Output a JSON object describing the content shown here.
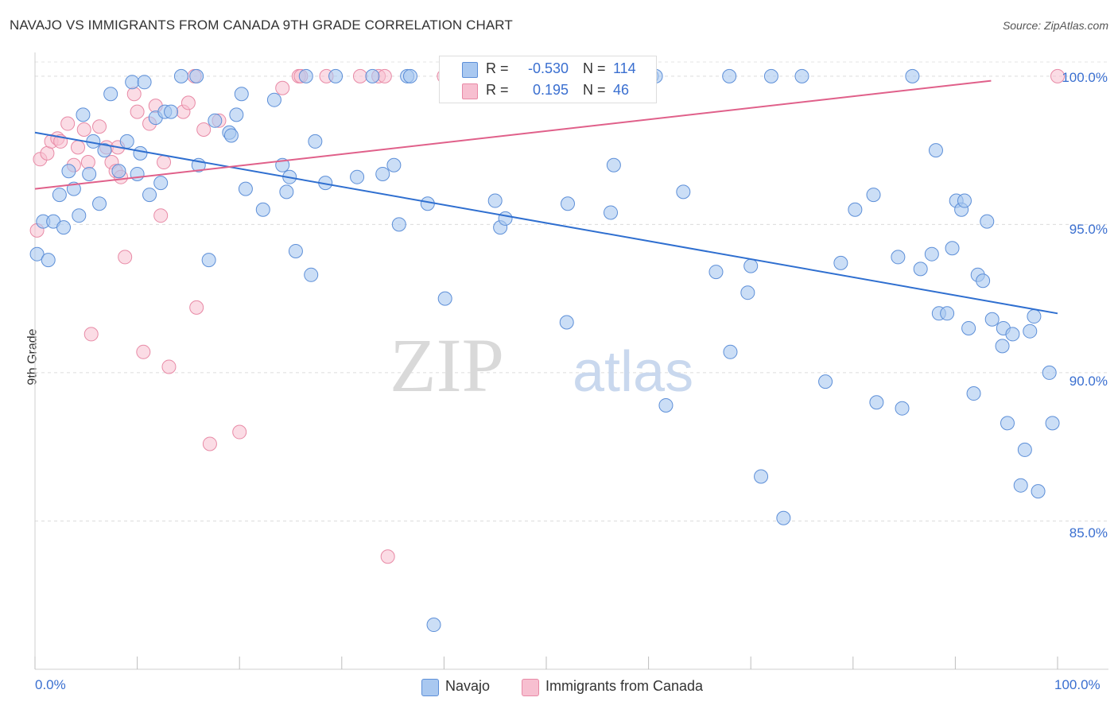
{
  "title": "NAVAJO VS IMMIGRANTS FROM CANADA 9TH GRADE CORRELATION CHART",
  "source": "Source: ZipAtlas.com",
  "watermark": {
    "zip": "ZIP",
    "atlas": "atlas"
  },
  "legend": {
    "rows": [
      {
        "r_label": "R =",
        "r_value": "-0.530",
        "n_label": "N =",
        "n_value": "114"
      },
      {
        "r_label": "R =",
        "r_value": "0.195",
        "n_label": "N =",
        "n_value": "46"
      }
    ]
  },
  "colors": {
    "navajo_fill": "#a9c8f0",
    "navajo_stroke": "#5d8fd8",
    "navajo_line": "#2f6fd0",
    "canada_fill": "#f7bfd0",
    "canada_stroke": "#e88aa6",
    "canada_line": "#e0608a",
    "tick_text": "#3a6fd0"
  },
  "chart_data": {
    "type": "scatter",
    "title": "NAVAJO VS IMMIGRANTS FROM CANADA 9TH GRADE CORRELATION CHART",
    "xlabel": "",
    "ylabel": "9th Grade",
    "xlim": [
      0,
      100
    ],
    "ylim": [
      80.0,
      100.8
    ],
    "x_tick_labels": [
      "0.0%",
      "100.0%"
    ],
    "y_ticks": [
      85.0,
      90.0,
      95.0,
      100.0
    ],
    "y_tick_labels": [
      "85.0%",
      "90.0%",
      "95.0%",
      "100.0%"
    ],
    "grid": true,
    "legend_position": "bottom",
    "series": [
      {
        "name": "Navajo",
        "trend": {
          "x": [
            0,
            100
          ],
          "y": [
            98.1,
            92.0
          ]
        },
        "points": [
          [
            0.2,
            94.0
          ],
          [
            0.8,
            95.1
          ],
          [
            1.3,
            93.8
          ],
          [
            1.8,
            95.1
          ],
          [
            2.4,
            96.0
          ],
          [
            2.8,
            94.9
          ],
          [
            3.3,
            96.8
          ],
          [
            3.8,
            96.2
          ],
          [
            4.3,
            95.3
          ],
          [
            4.7,
            98.7
          ],
          [
            5.3,
            96.7
          ],
          [
            5.7,
            97.8
          ],
          [
            6.3,
            95.7
          ],
          [
            6.8,
            97.5
          ],
          [
            7.4,
            99.4
          ],
          [
            8.2,
            96.8
          ],
          [
            9.0,
            97.8
          ],
          [
            9.5,
            99.8
          ],
          [
            10.0,
            96.7
          ],
          [
            10.3,
            97.4
          ],
          [
            10.7,
            99.8
          ],
          [
            11.2,
            96.0
          ],
          [
            11.8,
            98.6
          ],
          [
            12.3,
            96.4
          ],
          [
            12.7,
            98.8
          ],
          [
            13.3,
            98.8
          ],
          [
            14.3,
            100.0
          ],
          [
            15.8,
            100.0
          ],
          [
            16.0,
            97.0
          ],
          [
            17.0,
            93.8
          ],
          [
            17.6,
            98.5
          ],
          [
            19.0,
            98.1
          ],
          [
            19.2,
            98.0
          ],
          [
            19.7,
            98.7
          ],
          [
            20.2,
            99.4
          ],
          [
            20.6,
            96.2
          ],
          [
            22.3,
            95.5
          ],
          [
            23.4,
            99.2
          ],
          [
            24.2,
            97.0
          ],
          [
            24.6,
            96.1
          ],
          [
            24.9,
            96.6
          ],
          [
            25.5,
            94.1
          ],
          [
            26.5,
            100.0
          ],
          [
            27.0,
            93.3
          ],
          [
            27.4,
            97.8
          ],
          [
            28.4,
            96.4
          ],
          [
            29.4,
            100.0
          ],
          [
            31.5,
            96.6
          ],
          [
            33.0,
            100.0
          ],
          [
            34.0,
            96.7
          ],
          [
            35.1,
            97.0
          ],
          [
            35.6,
            95.0
          ],
          [
            36.4,
            100.0
          ],
          [
            36.7,
            100.0
          ],
          [
            38.4,
            95.7
          ],
          [
            40.1,
            92.5
          ],
          [
            40.9,
            100.0
          ],
          [
            42.2,
            100.0
          ],
          [
            45.0,
            95.8
          ],
          [
            45.5,
            94.9
          ],
          [
            46.0,
            95.2
          ],
          [
            52.1,
            95.7
          ],
          [
            52.0,
            91.7
          ],
          [
            52.5,
            100.0
          ],
          [
            56.3,
            95.4
          ],
          [
            56.6,
            97.0
          ],
          [
            60.3,
            100.0
          ],
          [
            60.7,
            100.0
          ],
          [
            61.7,
            88.9
          ],
          [
            63.4,
            96.1
          ],
          [
            66.6,
            93.4
          ],
          [
            67.9,
            100.0
          ],
          [
            68.0,
            90.7
          ],
          [
            69.7,
            92.7
          ],
          [
            70.0,
            93.6
          ],
          [
            71.0,
            86.5
          ],
          [
            72.0,
            100.0
          ],
          [
            73.2,
            85.1
          ],
          [
            75.0,
            100.0
          ],
          [
            77.3,
            89.7
          ],
          [
            78.8,
            93.7
          ],
          [
            80.2,
            95.5
          ],
          [
            82.0,
            96.0
          ],
          [
            82.3,
            89.0
          ],
          [
            84.4,
            93.9
          ],
          [
            84.8,
            88.8
          ],
          [
            85.8,
            100.0
          ],
          [
            86.6,
            93.5
          ],
          [
            87.7,
            94.0
          ],
          [
            88.1,
            97.5
          ],
          [
            88.4,
            92.0
          ],
          [
            89.2,
            92.0
          ],
          [
            89.7,
            94.2
          ],
          [
            90.1,
            95.8
          ],
          [
            90.6,
            95.5
          ],
          [
            90.9,
            95.8
          ],
          [
            91.3,
            91.5
          ],
          [
            91.8,
            89.3
          ],
          [
            92.2,
            93.3
          ],
          [
            92.7,
            93.1
          ],
          [
            93.1,
            95.1
          ],
          [
            93.6,
            91.8
          ],
          [
            94.6,
            90.9
          ],
          [
            94.7,
            91.5
          ],
          [
            95.1,
            88.3
          ],
          [
            95.6,
            91.3
          ],
          [
            96.4,
            86.2
          ],
          [
            96.8,
            87.4
          ],
          [
            97.3,
            91.4
          ],
          [
            97.7,
            91.9
          ],
          [
            98.1,
            86.0
          ],
          [
            99.2,
            90.0
          ],
          [
            99.5,
            88.3
          ],
          [
            39.0,
            81.5
          ]
        ]
      },
      {
        "name": "Immigrants from Canada",
        "trend": {
          "x": [
            0,
            100
          ],
          "y": [
            96.2,
            100.1
          ]
        },
        "points": [
          [
            0.2,
            94.8
          ],
          [
            0.5,
            97.2
          ],
          [
            1.2,
            97.4
          ],
          [
            1.6,
            97.8
          ],
          [
            2.2,
            97.9
          ],
          [
            2.5,
            97.8
          ],
          [
            3.2,
            98.4
          ],
          [
            3.8,
            97.0
          ],
          [
            4.2,
            97.6
          ],
          [
            4.8,
            98.2
          ],
          [
            5.2,
            97.1
          ],
          [
            6.3,
            98.3
          ],
          [
            7.0,
            97.6
          ],
          [
            7.5,
            97.1
          ],
          [
            7.9,
            96.8
          ],
          [
            8.1,
            97.6
          ],
          [
            8.4,
            96.6
          ],
          [
            8.8,
            93.9
          ],
          [
            9.7,
            99.4
          ],
          [
            10.0,
            98.8
          ],
          [
            10.6,
            90.7
          ],
          [
            11.2,
            98.4
          ],
          [
            11.8,
            99.0
          ],
          [
            12.3,
            95.3
          ],
          [
            12.6,
            97.1
          ],
          [
            13.1,
            90.2
          ],
          [
            14.5,
            98.8
          ],
          [
            15.0,
            99.1
          ],
          [
            15.6,
            100.0
          ],
          [
            15.8,
            92.2
          ],
          [
            16.5,
            98.2
          ],
          [
            17.1,
            87.6
          ],
          [
            18.0,
            98.5
          ],
          [
            20.0,
            88.0
          ],
          [
            24.2,
            99.6
          ],
          [
            25.8,
            100.0
          ],
          [
            26.0,
            100.0
          ],
          [
            28.5,
            100.0
          ],
          [
            31.8,
            100.0
          ],
          [
            33.6,
            100.0
          ],
          [
            34.2,
            100.0
          ],
          [
            34.5,
            83.8
          ],
          [
            40.0,
            100.0
          ],
          [
            47.0,
            100.0
          ],
          [
            5.5,
            91.3
          ],
          [
            100.0,
            100.0
          ]
        ]
      }
    ]
  },
  "bottom_legend": [
    {
      "label": "Navajo"
    },
    {
      "label": "Immigrants from Canada"
    }
  ]
}
